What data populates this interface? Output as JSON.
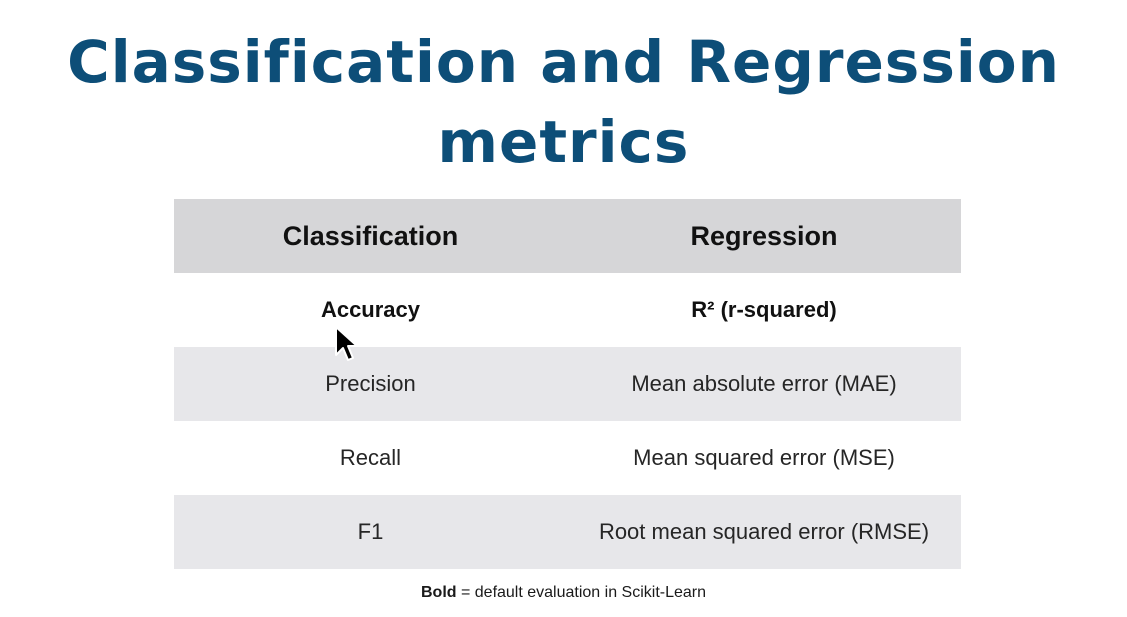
{
  "slide": {
    "title_line1": "Classification and Regression",
    "title_line2": "metrics"
  },
  "table": {
    "headers": [
      "Classification",
      "Regression"
    ],
    "rows": [
      {
        "classification": "Accuracy",
        "regression": "R² (r-squared)",
        "bold": true
      },
      {
        "classification": "Precision",
        "regression": "Mean absolute error (MAE)",
        "bold": false
      },
      {
        "classification": "Recall",
        "regression": "Mean squared error (MSE)",
        "bold": false
      },
      {
        "classification": "F1",
        "regression": "Root mean squared error (RMSE)",
        "bold": false
      }
    ]
  },
  "legend": {
    "bold_word": "Bold",
    "rest": " = default evaluation in Scikit-Learn"
  },
  "colors": {
    "title": "#0d4e78",
    "header_bg": "#d6d6d8",
    "shaded_row_bg": "#e7e7ea"
  },
  "icons": {
    "cursor": "mouse-pointer-icon"
  }
}
